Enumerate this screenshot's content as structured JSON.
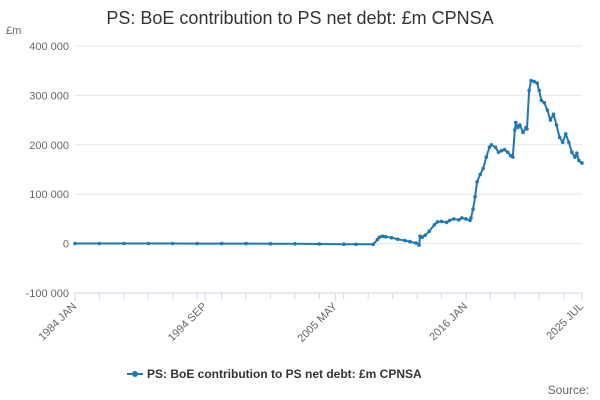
{
  "title": "PS: BoE contribution to PS net debt: £m CPNSA",
  "source_label": "Source:",
  "colors": {
    "series": "#1f77b4",
    "grid": "#e6e6e6",
    "axis": "#ccd6eb",
    "text": "#666666"
  },
  "chart_data": {
    "type": "line",
    "title": "PS: BoE contribution to PS net debt: £m CPNSA",
    "ylabel": "£m",
    "xlabel": "",
    "ylim": [
      -100000,
      400000
    ],
    "y_ticks": [
      {
        "value": -100000,
        "label": "-100 000"
      },
      {
        "value": 0,
        "label": "0"
      },
      {
        "value": 100000,
        "label": "100 000"
      },
      {
        "value": 200000,
        "label": "200 000"
      },
      {
        "value": 300000,
        "label": "300 000"
      },
      {
        "value": 400000,
        "label": "400 000"
      }
    ],
    "xlim": [
      "1984-01",
      "2025-07"
    ],
    "x_ticks": [
      {
        "value": "1984-01",
        "label": "1984 JAN"
      },
      {
        "value": "1994-09",
        "label": "1994 SEP"
      },
      {
        "value": "2005-05",
        "label": "2005 MAY"
      },
      {
        "value": "2016-01",
        "label": "2016 JAN"
      },
      {
        "value": "2025-07",
        "label": "2025 JUL"
      }
    ],
    "grid": true,
    "legend_position": "bottom",
    "series": [
      {
        "name": "PS: BoE contribution to PS net debt: £m CPNSA",
        "points": [
          [
            "1984-01",
            300
          ],
          [
            "1986-01",
            250
          ],
          [
            "1988-01",
            200
          ],
          [
            "1990-01",
            150
          ],
          [
            "1992-01",
            150
          ],
          [
            "1994-01",
            100
          ],
          [
            "1996-01",
            100
          ],
          [
            "1998-01",
            0
          ],
          [
            "2000-01",
            -200
          ],
          [
            "2002-01",
            -400
          ],
          [
            "2004-01",
            -800
          ],
          [
            "2006-01",
            -1200
          ],
          [
            "2007-01",
            -1500
          ],
          [
            "2008-06",
            -1500
          ],
          [
            "2008-10",
            8000
          ],
          [
            "2008-12",
            13000
          ],
          [
            "2009-03",
            15000
          ],
          [
            "2009-06",
            14000
          ],
          [
            "2009-12",
            12000
          ],
          [
            "2010-06",
            9000
          ],
          [
            "2011-01",
            6000
          ],
          [
            "2011-06",
            4000
          ],
          [
            "2011-12",
            1000
          ],
          [
            "2012-03",
            -3000
          ],
          [
            "2012-04",
            15000
          ],
          [
            "2012-06",
            13000
          ],
          [
            "2012-09",
            17000
          ],
          [
            "2013-01",
            25000
          ],
          [
            "2013-06",
            38000
          ],
          [
            "2013-09",
            44000
          ],
          [
            "2014-01",
            45000
          ],
          [
            "2014-06",
            43000
          ],
          [
            "2014-09",
            47000
          ],
          [
            "2015-01",
            50000
          ],
          [
            "2015-06",
            48000
          ],
          [
            "2015-09",
            52000
          ],
          [
            "2016-01",
            50000
          ],
          [
            "2016-05",
            47000
          ],
          [
            "2016-06",
            52000
          ],
          [
            "2016-08",
            70000
          ],
          [
            "2016-10",
            95000
          ],
          [
            "2016-12",
            125000
          ],
          [
            "2017-03",
            140000
          ],
          [
            "2017-06",
            152000
          ],
          [
            "2017-09",
            175000
          ],
          [
            "2017-12",
            195000
          ],
          [
            "2018-02",
            200000
          ],
          [
            "2018-06",
            195000
          ],
          [
            "2018-09",
            185000
          ],
          [
            "2018-12",
            188000
          ],
          [
            "2019-03",
            190000
          ],
          [
            "2019-06",
            185000
          ],
          [
            "2019-09",
            178000
          ],
          [
            "2019-11",
            175000
          ],
          [
            "2020-01",
            230000
          ],
          [
            "2020-02",
            245000
          ],
          [
            "2020-04",
            235000
          ],
          [
            "2020-06",
            240000
          ],
          [
            "2020-09",
            225000
          ],
          [
            "2020-12",
            235000
          ],
          [
            "2021-01",
            232000
          ],
          [
            "2021-03",
            310000
          ],
          [
            "2021-05",
            330000
          ],
          [
            "2021-08",
            328000
          ],
          [
            "2021-11",
            325000
          ],
          [
            "2022-01",
            310000
          ],
          [
            "2022-03",
            290000
          ],
          [
            "2022-06",
            285000
          ],
          [
            "2022-09",
            270000
          ],
          [
            "2022-12",
            250000
          ],
          [
            "2023-03",
            262000
          ],
          [
            "2023-06",
            240000
          ],
          [
            "2023-09",
            215000
          ],
          [
            "2023-12",
            205000
          ],
          [
            "2024-03",
            222000
          ],
          [
            "2024-06",
            205000
          ],
          [
            "2024-09",
            185000
          ],
          [
            "2024-12",
            175000
          ],
          [
            "2025-02",
            183000
          ],
          [
            "2025-04",
            168000
          ],
          [
            "2025-07",
            163000
          ]
        ]
      }
    ]
  }
}
